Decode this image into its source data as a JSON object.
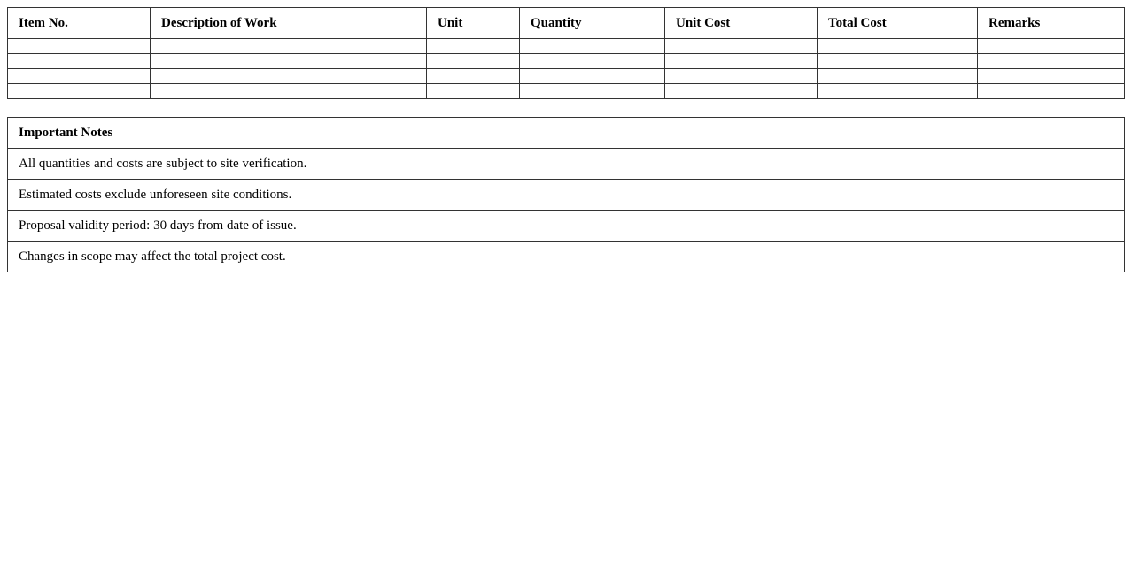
{
  "table": {
    "headers": [
      "Item No.",
      "Description of Work",
      "Unit",
      "Quantity",
      "Unit Cost",
      "Total Cost",
      "Remarks"
    ],
    "rows": [
      [
        "",
        "",
        "",
        "",
        "",
        "",
        ""
      ],
      [
        "",
        "",
        "",
        "",
        "",
        "",
        ""
      ],
      [
        "",
        "",
        "",
        "",
        "",
        "",
        ""
      ],
      [
        "",
        "",
        "",
        "",
        "",
        "",
        ""
      ]
    ]
  },
  "notes": {
    "title": "Important Notes",
    "items": [
      "All quantities and costs are subject to site verification.",
      "Estimated costs exclude unforeseen site conditions.",
      "Proposal validity period: 30 days from date of issue.",
      "Changes in scope may affect the total project cost."
    ]
  }
}
